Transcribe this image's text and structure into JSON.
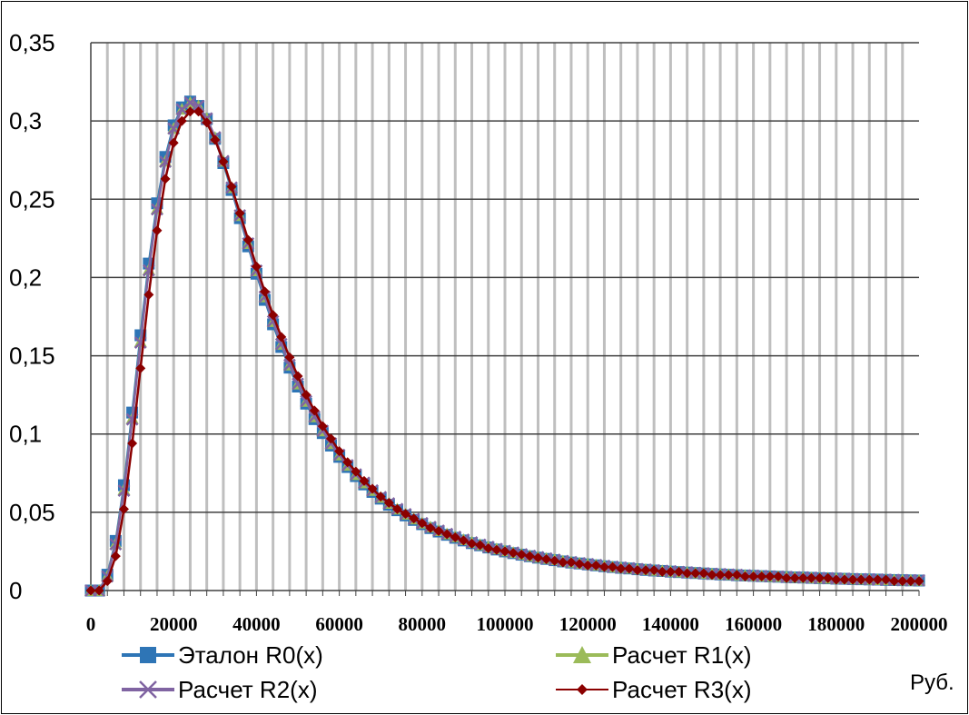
{
  "chart_data": {
    "type": "line",
    "title": "",
    "xlabel": "",
    "ylabel": "",
    "unit_label": "Руб.",
    "xlim": [
      0,
      200000
    ],
    "ylim": [
      0,
      0.35
    ],
    "grid": "vertical and horizontal",
    "legend_position": "bottom",
    "x_ticks": [
      "0",
      "20000",
      "40000",
      "60000",
      "80000",
      "100000",
      "120000",
      "140000",
      "160000",
      "180000",
      "200000"
    ],
    "y_ticks": [
      "0",
      "0,05",
      "0,1",
      "0,15",
      "0,2",
      "0,25",
      "0,3",
      "0,35"
    ],
    "x": [
      0,
      2000,
      4000,
      6000,
      8000,
      10000,
      12000,
      14000,
      16000,
      18000,
      20000,
      22000,
      24000,
      26000,
      28000,
      30000,
      32000,
      34000,
      36000,
      38000,
      40000,
      42000,
      44000,
      46000,
      48000,
      50000,
      52000,
      54000,
      56000,
      58000,
      60000,
      62000,
      64000,
      66000,
      68000,
      70000,
      72000,
      74000,
      76000,
      78000,
      80000,
      82000,
      84000,
      86000,
      88000,
      90000,
      92000,
      94000,
      96000,
      98000,
      100000,
      102000,
      104000,
      106000,
      108000,
      110000,
      112000,
      114000,
      116000,
      118000,
      120000,
      122000,
      124000,
      126000,
      128000,
      130000,
      132000,
      134000,
      136000,
      138000,
      140000,
      142000,
      144000,
      146000,
      148000,
      150000,
      152000,
      154000,
      156000,
      158000,
      160000,
      162000,
      164000,
      166000,
      168000,
      170000,
      172000,
      174000,
      176000,
      178000,
      180000,
      182000,
      184000,
      186000,
      188000,
      190000,
      192000,
      194000,
      196000,
      198000,
      200000
    ],
    "series": [
      {
        "name": "Эталон R0(x)",
        "color": "#2e75b6",
        "marker": "square",
        "values": [
          0.0,
          0.0,
          0.0101,
          0.0317,
          0.0673,
          0.1137,
          0.1631,
          0.2089,
          0.2474,
          0.277,
          0.2972,
          0.3087,
          0.3124,
          0.3096,
          0.3012,
          0.2886,
          0.2731,
          0.2559,
          0.2379,
          0.2199,
          0.2024,
          0.1857,
          0.1701,
          0.1556,
          0.1424,
          0.1303,
          0.1194,
          0.1095,
          0.1006,
          0.0926,
          0.0854,
          0.0789,
          0.0731,
          0.0678,
          0.063,
          0.0587,
          0.0548,
          0.0513,
          0.048,
          0.0451,
          0.0424,
          0.0399,
          0.0377,
          0.0356,
          0.0337,
          0.032,
          0.0303,
          0.0289,
          0.0275,
          0.0262,
          0.025,
          0.0239,
          0.0229,
          0.0219,
          0.021,
          0.0202,
          0.0194,
          0.0186,
          0.0179,
          0.0173,
          0.0167,
          0.0161,
          0.0155,
          0.015,
          0.0145,
          0.0141,
          0.0136,
          0.0132,
          0.0128,
          0.0125,
          0.0121,
          0.0118,
          0.0115,
          0.0112,
          0.0109,
          0.0106,
          0.0103,
          0.0101,
          0.0098,
          0.0096,
          0.0094,
          0.0092,
          0.009,
          0.0088,
          0.0086,
          0.0084,
          0.0083,
          0.0081,
          0.0079,
          0.0078,
          0.0076,
          0.0075,
          0.0073,
          0.0072,
          0.0071,
          0.007,
          0.0068,
          0.0067,
          0.0066,
          0.0065,
          0.0064
        ]
      },
      {
        "name": "Расчет R1(x)",
        "color": "#9bbb59",
        "marker": "triangle",
        "values": [
          0.0,
          0.0,
          0.0093,
          0.03,
          0.0645,
          0.1101,
          0.1591,
          0.2051,
          0.244,
          0.2743,
          0.2953,
          0.3075,
          0.3118,
          0.3096,
          0.3017,
          0.2895,
          0.2743,
          0.2574,
          0.2396,
          0.2217,
          0.2043,
          0.1876,
          0.1719,
          0.1574,
          0.1441,
          0.132,
          0.1209,
          0.111,
          0.102,
          0.0939,
          0.0866,
          0.08,
          0.0741,
          0.0688,
          0.064,
          0.0596,
          0.0557,
          0.0521,
          0.0488,
          0.0458,
          0.0431,
          0.0406,
          0.0383,
          0.0362,
          0.0343,
          0.0325,
          0.0308,
          0.0293,
          0.0279,
          0.0266,
          0.0254,
          0.0243,
          0.0232,
          0.0222,
          0.0213,
          0.0205,
          0.0197,
          0.0189,
          0.0182,
          0.0175,
          0.0169,
          0.0163,
          0.0158,
          0.0152,
          0.0147,
          0.0143,
          0.0138,
          0.0134,
          0.013,
          0.0126,
          0.0123,
          0.0119,
          0.0116,
          0.0113,
          0.011,
          0.0107,
          0.0105,
          0.0102,
          0.01,
          0.0097,
          0.0095,
          0.0093,
          0.0091,
          0.0089,
          0.0087,
          0.0085,
          0.0084,
          0.0082,
          0.008,
          0.0079,
          0.0077,
          0.0076,
          0.0074,
          0.0073,
          0.0072,
          0.007,
          0.0069,
          0.0068,
          0.0067,
          0.0066,
          0.0065
        ]
      },
      {
        "name": "Расчет R2(x)",
        "color": "#8064a2",
        "marker": "x",
        "values": [
          0.0,
          0.0,
          0.009,
          0.0295,
          0.0638,
          0.1093,
          0.1584,
          0.2045,
          0.2435,
          0.2739,
          0.2951,
          0.3074,
          0.3117,
          0.3096,
          0.3017,
          0.2896,
          0.2744,
          0.2575,
          0.2397,
          0.2218,
          0.2044,
          0.1877,
          0.172,
          0.1575,
          0.1442,
          0.1321,
          0.121,
          0.1111,
          0.1021,
          0.094,
          0.0867,
          0.0801,
          0.0742,
          0.0689,
          0.064,
          0.0597,
          0.0557,
          0.0521,
          0.0488,
          0.0458,
          0.0431,
          0.0406,
          0.0383,
          0.0362,
          0.0343,
          0.0325,
          0.0308,
          0.0293,
          0.0279,
          0.0266,
          0.0254,
          0.0243,
          0.0232,
          0.0222,
          0.0213,
          0.0205,
          0.0197,
          0.0189,
          0.0182,
          0.0175,
          0.0169,
          0.0163,
          0.0158,
          0.0152,
          0.0147,
          0.0143,
          0.0138,
          0.0134,
          0.013,
          0.0126,
          0.0123,
          0.0119,
          0.0116,
          0.0113,
          0.011,
          0.0107,
          0.0105,
          0.0102,
          0.01,
          0.0097,
          0.0095,
          0.0093,
          0.0091,
          0.0089,
          0.0087,
          0.0085,
          0.0084,
          0.0082,
          0.008,
          0.0079,
          0.0077,
          0.0076,
          0.0074,
          0.0073,
          0.0072,
          0.007,
          0.0069,
          0.0068,
          0.0067,
          0.0066,
          0.0065
        ]
      },
      {
        "name": "Расчет R3(x)",
        "color": "#8b0000",
        "marker": "diamond",
        "values": [
          0.0,
          0.0,
          0.006,
          0.022,
          0.052,
          0.094,
          0.142,
          0.189,
          0.23,
          0.263,
          0.286,
          0.3,
          0.306,
          0.306,
          0.299,
          0.288,
          0.274,
          0.258,
          0.241,
          0.224,
          0.207,
          0.191,
          0.176,
          0.162,
          0.149,
          0.137,
          0.125,
          0.115,
          0.105,
          0.097,
          0.089,
          0.082,
          0.076,
          0.07,
          0.065,
          0.06,
          0.056,
          0.052,
          0.049,
          0.046,
          0.043,
          0.04,
          0.038,
          0.036,
          0.034,
          0.032,
          0.03,
          0.029,
          0.027,
          0.026,
          0.025,
          0.024,
          0.023,
          0.022,
          0.021,
          0.02,
          0.019,
          0.018,
          0.018,
          0.017,
          0.016,
          0.016,
          0.015,
          0.015,
          0.014,
          0.014,
          0.013,
          0.013,
          0.013,
          0.012,
          0.012,
          0.012,
          0.011,
          0.011,
          0.011,
          0.01,
          0.01,
          0.01,
          0.01,
          0.009,
          0.009,
          0.009,
          0.009,
          0.009,
          0.008,
          0.008,
          0.008,
          0.008,
          0.008,
          0.008,
          0.007,
          0.007,
          0.007,
          0.007,
          0.007,
          0.007,
          0.007,
          0.006,
          0.006,
          0.006,
          0.006
        ]
      }
    ]
  }
}
